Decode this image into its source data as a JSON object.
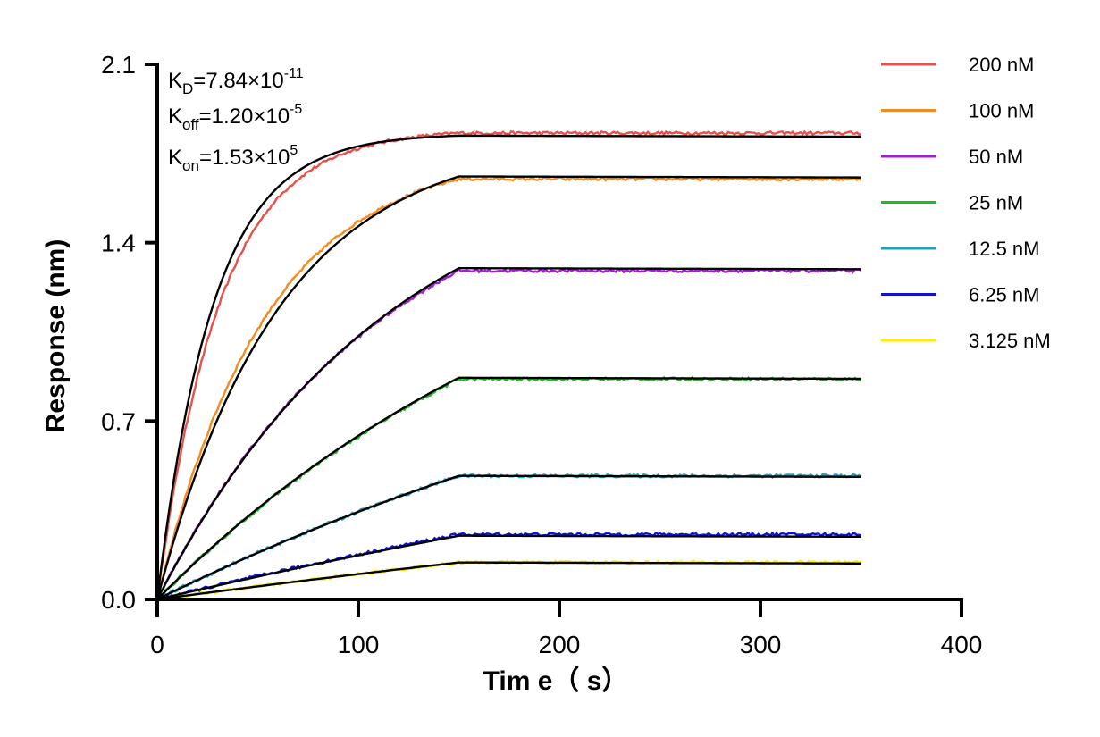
{
  "chart_data": {
    "type": "line",
    "xlabel": "Tim e（ s）",
    "ylabel": "Response (nm)",
    "xlim": [
      0,
      400
    ],
    "ylim": [
      0,
      2.1
    ],
    "x_ticks": [
      "0",
      "100",
      "200",
      "300",
      "400"
    ],
    "y_ticks": [
      "0.0",
      "0.7",
      "1.4",
      "2.1"
    ],
    "grid": false,
    "legend_position": "right",
    "association_end_s": 150,
    "end_time_s": 350,
    "kinetics": {
      "kd": {
        "label": "K",
        "sub": "D",
        "value": "=7.84×10",
        "exp": "-11"
      },
      "koff": {
        "label": "K",
        "sub": "off",
        "value": "=1.20×10",
        "exp": "-5"
      },
      "kon": {
        "label": "K",
        "sub": "on",
        "value": "=1.53×10",
        "exp": "5"
      }
    },
    "fit_color": "#000000",
    "series": [
      {
        "name": "200 nM",
        "color": "#e8504a",
        "plateau": 1.83,
        "fit_plateau": 1.82,
        "k": 0.032,
        "fit_k": 0.036
      },
      {
        "name": "100 nM",
        "color": "#f58a1f",
        "plateau": 1.65,
        "fit_plateau": 1.66,
        "k": 0.0185,
        "fit_k": 0.0165
      },
      {
        "name": "50 nM",
        "color": "#a020d0",
        "plateau": 1.29,
        "fit_plateau": 1.3,
        "k": 0.0088,
        "fit_k": 0.0085
      },
      {
        "name": "25 nM",
        "color": "#22bb22",
        "plateau": 0.865,
        "fit_plateau": 0.87,
        "k": 0.0045,
        "fit_k": 0.0045
      },
      {
        "name": "12.5 nM",
        "color": "#22a0b8",
        "plateau": 0.485,
        "fit_plateau": 0.485,
        "k": 0.0026,
        "fit_k": 0.0026
      },
      {
        "name": "6.25 nM",
        "color": "#1010d8",
        "plateau": 0.255,
        "fit_plateau": 0.25,
        "k": 0.0015,
        "fit_k": 0.0015
      },
      {
        "name": "3.125 nM",
        "color": "#ffee00",
        "plateau": 0.145,
        "fit_plateau": 0.145,
        "k": 0.0012,
        "fit_k": 0.0012
      }
    ]
  }
}
